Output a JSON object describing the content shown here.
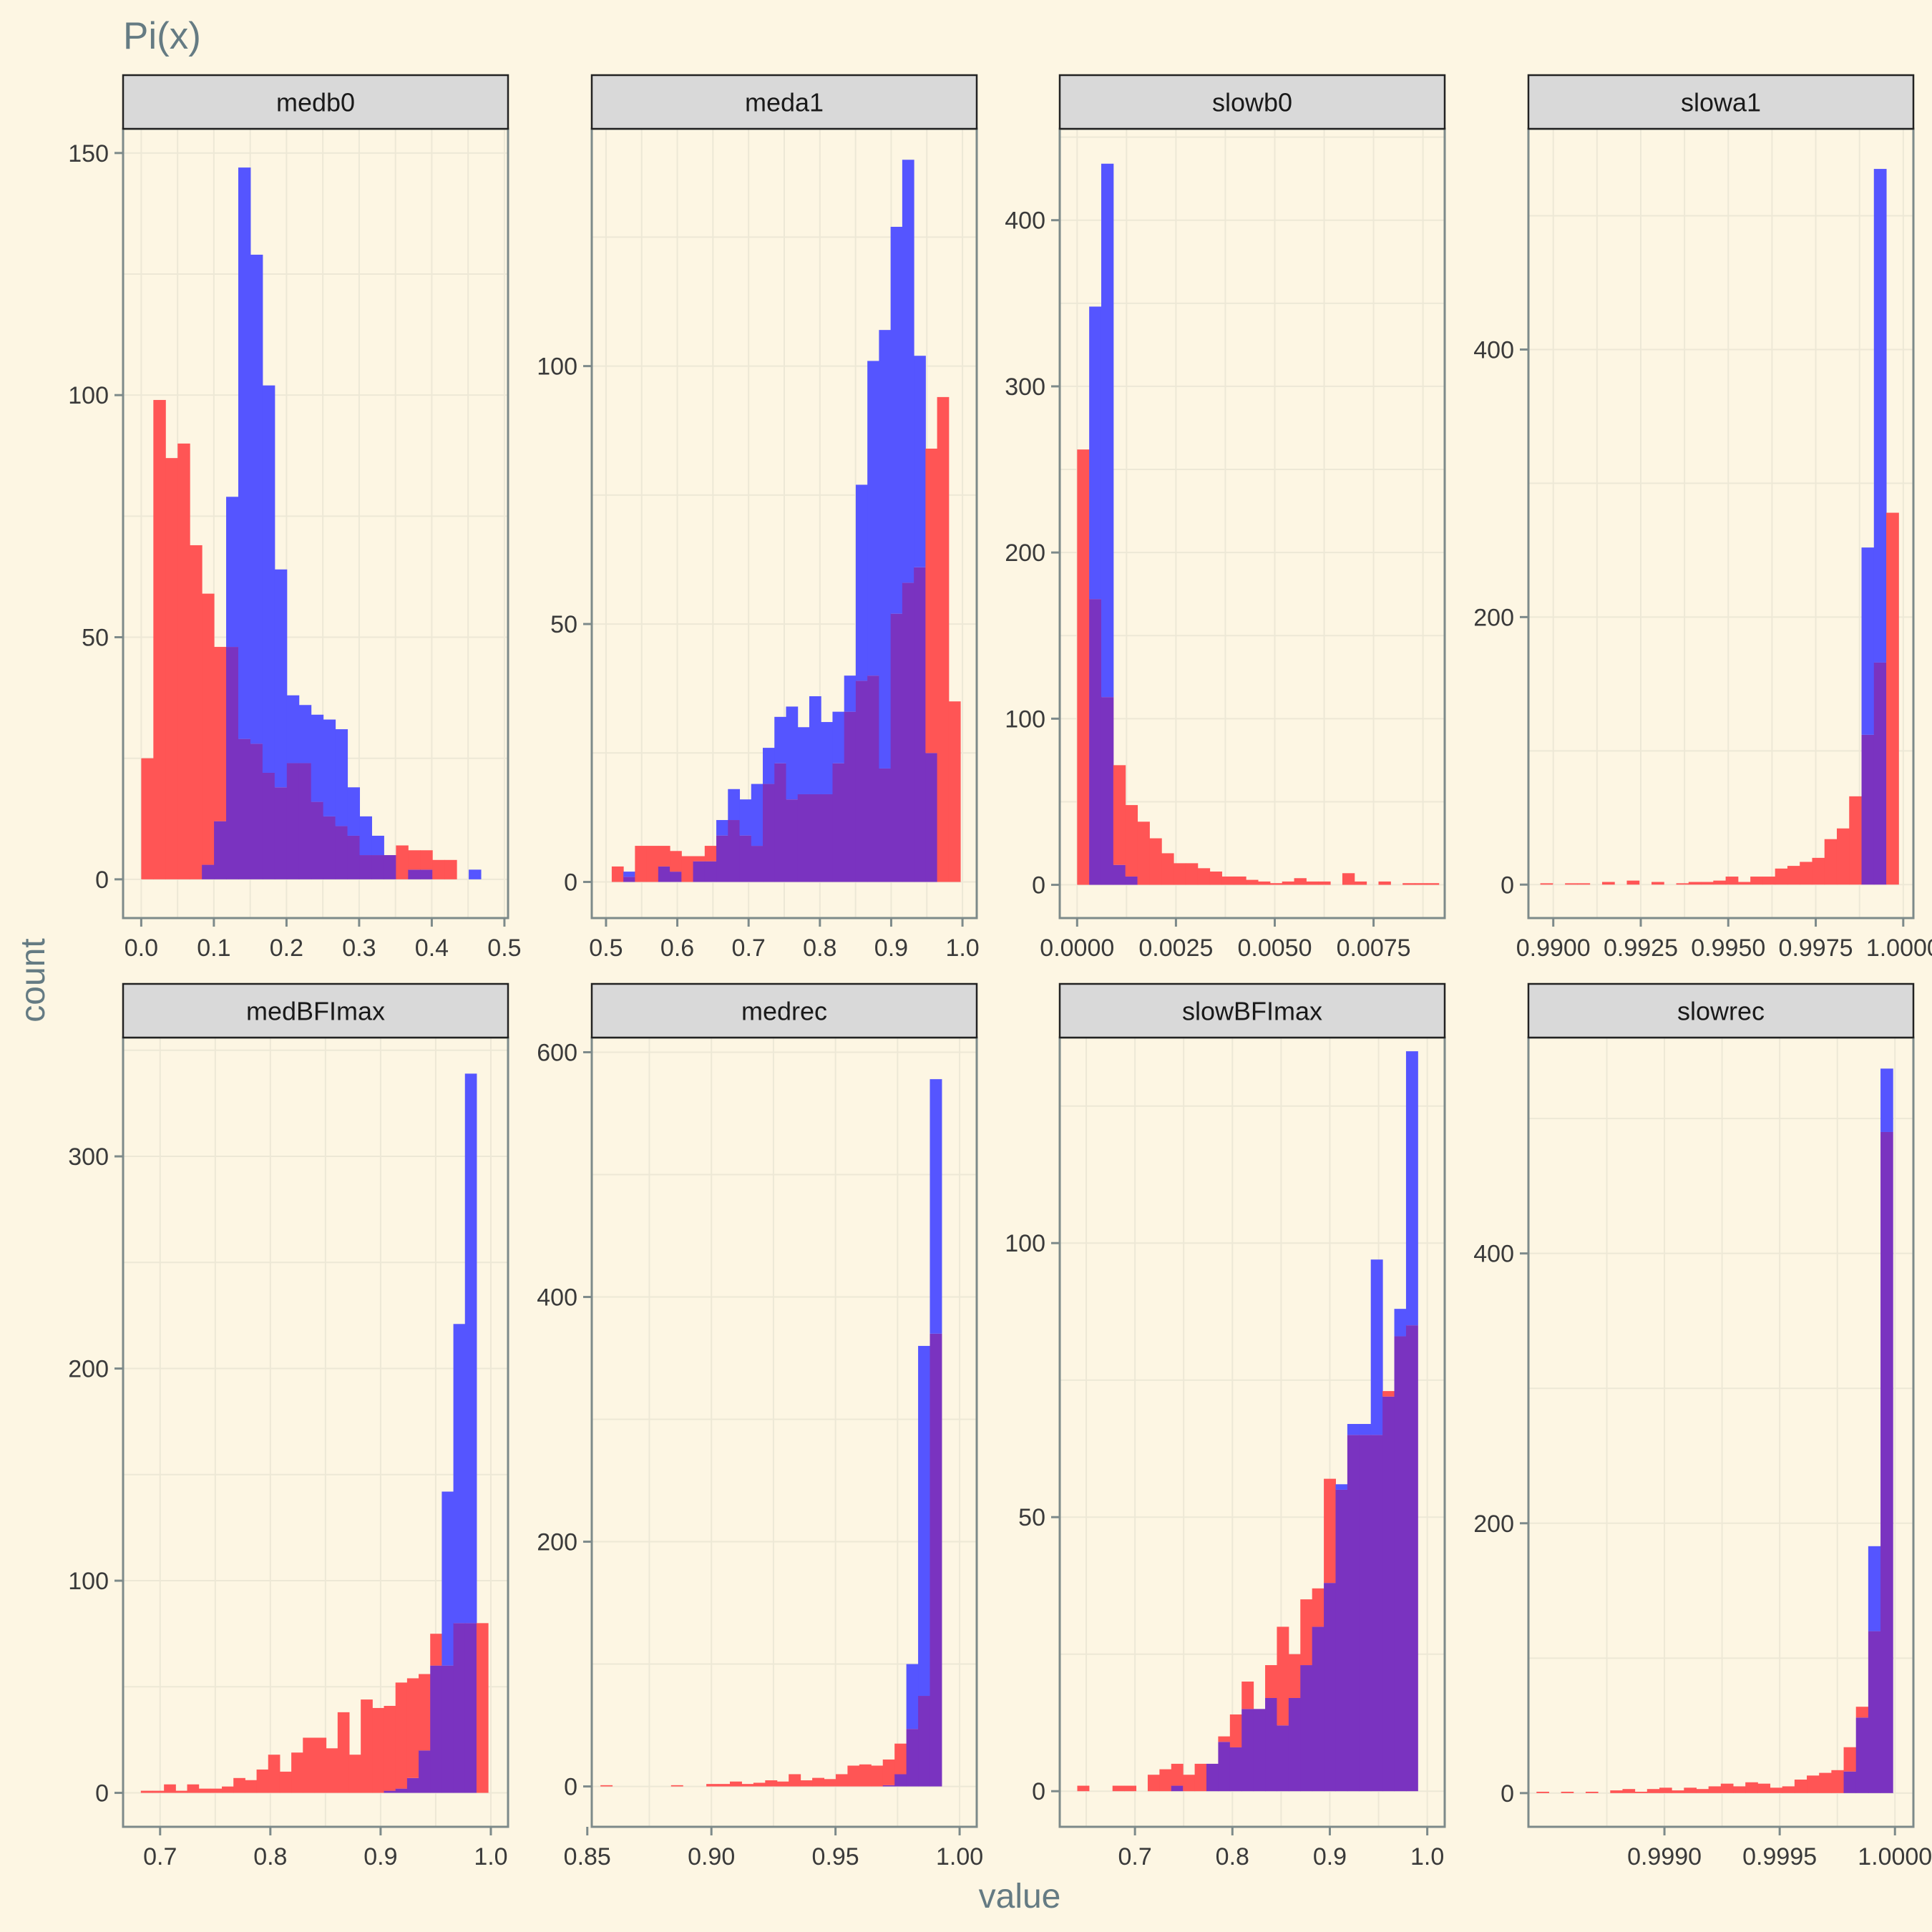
{
  "title": "Pi(x)",
  "colors": {
    "background": "#fdf6e3",
    "series_red": "#ff5555",
    "series_blue": "#5555ff",
    "overlap": "#7a33c0",
    "strip_fill": "#d9d9d9",
    "panel_border": "#7d8a8a",
    "grid": "#ede8d6"
  },
  "chart_data": {
    "type": "histogram",
    "title": "Pi(x)",
    "xlabel": "value",
    "ylabel": "count",
    "layout": "facet grid 2 rows x 4 columns, free scales",
    "series": [
      {
        "color": "red"
      },
      {
        "color": "blue"
      }
    ],
    "panels": [
      {
        "name": "medb0",
        "xlim": [
          -0.025,
          0.505
        ],
        "ylim": [
          -8,
          155
        ],
        "x_ticks": [
          0,
          0.1,
          0.2,
          0.3,
          0.4,
          0.5
        ],
        "x_tick_labels": [
          "0.0",
          "0.1",
          "0.2",
          "0.3",
          "0.4",
          "0.5"
        ],
        "y_ticks": [
          0,
          50,
          100,
          150
        ],
        "y_tick_labels": [
          "0",
          "50",
          "100",
          "150"
        ],
        "bin_start": 0.0,
        "bin_width": 0.0167,
        "red": [
          25,
          99,
          87,
          90,
          69,
          59,
          48,
          48,
          29,
          28,
          22,
          19,
          24,
          24,
          16,
          13,
          11,
          9,
          5,
          5,
          5,
          7,
          6,
          6,
          4,
          4,
          0,
          0,
          0
        ],
        "blue": [
          0,
          0,
          0,
          0,
          0,
          3,
          12,
          79,
          147,
          129,
          102,
          64,
          38,
          36,
          34,
          33,
          31,
          19,
          13,
          9,
          5,
          0,
          2,
          2,
          0,
          0,
          0,
          2,
          0
        ]
      },
      {
        "name": "meda1",
        "xlim": [
          0.48,
          1.02
        ],
        "ylim": [
          -7,
          146
        ],
        "x_ticks": [
          0.5,
          0.6,
          0.7,
          0.8,
          0.9,
          1.0
        ],
        "x_tick_labels": [
          "0.5",
          "0.6",
          "0.7",
          "0.8",
          "0.9",
          "1.0"
        ],
        "y_ticks": [
          0,
          50,
          100
        ],
        "y_tick_labels": [
          "0",
          "50",
          "100"
        ],
        "bin_start": 0.508,
        "bin_width": 0.0163,
        "red": [
          3,
          1,
          7,
          7,
          7,
          6,
          5,
          5,
          7,
          9,
          12,
          9,
          7,
          19,
          23,
          16,
          17,
          17,
          17,
          23,
          33,
          39,
          40,
          22,
          52,
          58,
          61,
          84,
          94,
          35
        ],
        "blue": [
          0,
          2,
          0,
          0,
          3,
          2,
          0,
          4,
          4,
          12,
          18,
          16,
          19,
          26,
          32,
          34,
          30,
          36,
          31,
          33,
          40,
          77,
          101,
          107,
          127,
          140,
          102,
          25,
          0,
          0
        ]
      },
      {
        "name": "slowb0",
        "xlim": [
          -0.00044,
          0.0093
        ],
        "ylim": [
          -20,
          455
        ],
        "x_ticks": [
          0,
          0.0025,
          0.005,
          0.0075
        ],
        "x_tick_labels": [
          "0.0000",
          "0.0025",
          "0.0050",
          "0.0075"
        ],
        "y_ticks": [
          0,
          100,
          200,
          300,
          400
        ],
        "y_tick_labels": [
          "0",
          "100",
          "200",
          "300",
          "400"
        ],
        "bin_start": 0.0,
        "bin_width": 0.000305,
        "red": [
          262,
          172,
          113,
          72,
          48,
          38,
          28,
          19,
          13,
          13,
          10,
          8,
          5,
          5,
          3,
          2,
          1,
          2,
          4,
          2,
          2,
          0,
          7,
          2,
          0,
          2,
          0,
          1,
          1,
          1
        ],
        "blue": [
          0,
          348,
          434,
          12,
          5,
          0,
          0,
          0,
          0,
          0,
          0,
          0,
          0,
          0,
          0,
          0,
          0,
          0,
          0,
          0,
          0,
          0,
          0,
          0,
          0,
          0,
          0,
          0,
          0,
          0
        ]
      },
      {
        "name": "slowa1",
        "xlim": [
          0.98929,
          1.00029
        ],
        "ylim": [
          -25,
          565
        ],
        "x_ticks": [
          0.99,
          0.9925,
          0.995,
          0.9975,
          1.0
        ],
        "x_tick_labels": [
          "0.9900",
          "0.9925",
          "0.9950",
          "0.9975",
          "1.0000"
        ],
        "y_ticks": [
          0,
          200,
          400
        ],
        "y_tick_labels": [
          "0",
          "200",
          "400"
        ],
        "bin_start": 0.98963,
        "bin_width": 0.000353,
        "red": [
          1,
          0,
          1,
          1,
          0,
          2,
          0,
          3,
          0,
          2,
          0,
          1,
          2,
          2,
          3,
          6,
          2,
          6,
          6,
          12,
          14,
          17,
          20,
          34,
          42,
          66,
          112,
          166,
          278
        ],
        "blue": [
          0,
          0,
          0,
          0,
          0,
          0,
          0,
          0,
          0,
          0,
          0,
          0,
          0,
          0,
          0,
          0,
          0,
          0,
          0,
          0,
          0,
          0,
          0,
          0,
          0,
          0,
          252,
          535,
          0
        ]
      },
      {
        "name": "medBFImax",
        "xlim": [
          0.6664,
          1.0156
        ],
        "ylim": [
          -16,
          356
        ],
        "x_ticks": [
          0.7,
          0.8,
          0.9,
          1.0
        ],
        "x_tick_labels": [
          "0.7",
          "0.8",
          "0.9",
          "1.0"
        ],
        "y_ticks": [
          0,
          100,
          200,
          300
        ],
        "y_tick_labels": [
          "0",
          "100",
          "200",
          "300"
        ],
        "bin_start": 0.6825,
        "bin_width": 0.0105,
        "red": [
          1,
          1,
          4,
          1,
          4,
          2,
          2,
          3,
          7,
          6,
          11,
          18,
          10,
          19,
          26,
          26,
          21,
          38,
          18,
          44,
          40,
          41,
          52,
          54,
          56,
          75,
          60,
          80,
          80,
          80
        ],
        "blue": [
          0,
          0,
          0,
          0,
          0,
          0,
          0,
          0,
          0,
          0,
          0,
          0,
          0,
          0,
          0,
          0,
          0,
          0,
          0,
          0,
          0,
          1,
          2,
          7,
          20,
          60,
          142,
          221,
          339,
          0
        ]
      },
      {
        "name": "medrec",
        "xlim": [
          0.8518,
          1.0069
        ],
        "ylim": [
          -33,
          612
        ],
        "x_ticks": [
          0.85,
          0.9,
          0.95,
          1.0
        ],
        "x_tick_labels": [
          "0.85",
          "0.90",
          "0.95",
          "1.00"
        ],
        "y_ticks": [
          0,
          200,
          400,
          600
        ],
        "y_tick_labels": [
          "0",
          "200",
          "400",
          "600"
        ],
        "bin_start": 0.8553,
        "bin_width": 0.00474,
        "red": [
          1,
          0,
          0,
          0,
          0,
          0,
          1,
          0,
          0,
          2,
          2,
          4,
          2,
          3,
          5,
          4,
          10,
          5,
          7,
          6,
          10,
          17,
          18,
          17,
          22,
          35,
          47,
          74,
          370
        ],
        "blue": [
          0,
          0,
          0,
          0,
          0,
          0,
          0,
          0,
          0,
          0,
          0,
          0,
          0,
          0,
          0,
          0,
          0,
          0,
          0,
          0,
          0,
          0,
          0,
          0,
          1,
          10,
          100,
          360,
          578
        ]
      },
      {
        "name": "slowBFImax",
        "xlim": [
          0.6228,
          1.0179
        ],
        "ylim": [
          -6.5,
          137.5
        ],
        "x_ticks": [
          0.7,
          0.8,
          0.9,
          1.0
        ],
        "x_tick_labels": [
          "0.7",
          "0.8",
          "0.9",
          "1.0"
        ],
        "y_ticks": [
          0,
          50,
          100
        ],
        "y_tick_labels": [
          "0",
          "50",
          "100"
        ],
        "bin_start": 0.6408,
        "bin_width": 0.01205,
        "red": [
          1,
          0,
          0,
          1,
          1,
          0,
          3,
          4,
          5,
          3,
          5,
          5,
          10,
          14,
          20,
          15,
          23,
          30,
          25,
          35,
          37,
          57,
          55,
          65,
          65,
          65,
          73,
          83,
          85
        ],
        "blue": [
          0,
          0,
          0,
          0,
          0,
          0,
          0,
          0,
          1,
          0,
          0,
          5,
          9,
          8,
          15,
          15,
          17,
          12,
          17,
          23,
          30,
          38,
          56,
          67,
          67,
          97,
          72,
          88,
          135
        ]
      },
      {
        "name": "slowrec",
        "xlim": [
          0.99841,
          1.00008
        ],
        "ylim": [
          -25,
          560
        ],
        "x_ticks": [
          0.999,
          0.9995,
          1.0
        ],
        "x_tick_labels": [
          "0.9990",
          "0.9995",
          "1.0000"
        ],
        "y_ticks": [
          0,
          200,
          400
        ],
        "y_tick_labels": [
          "0",
          "200",
          "400"
        ],
        "bin_start": 0.998445,
        "bin_width": 5.33e-05,
        "red": [
          1,
          0,
          1,
          0,
          1,
          0,
          2,
          3,
          1,
          3,
          4,
          2,
          4,
          3,
          5,
          7,
          5,
          8,
          7,
          4,
          5,
          10,
          13,
          15,
          17,
          34,
          64,
          120,
          490
        ],
        "blue": [
          0,
          0,
          0,
          0,
          0,
          0,
          0,
          0,
          0,
          0,
          0,
          0,
          0,
          0,
          0,
          0,
          0,
          0,
          0,
          0,
          0,
          0,
          0,
          0,
          0,
          16,
          56,
          183,
          537
        ]
      }
    ]
  }
}
